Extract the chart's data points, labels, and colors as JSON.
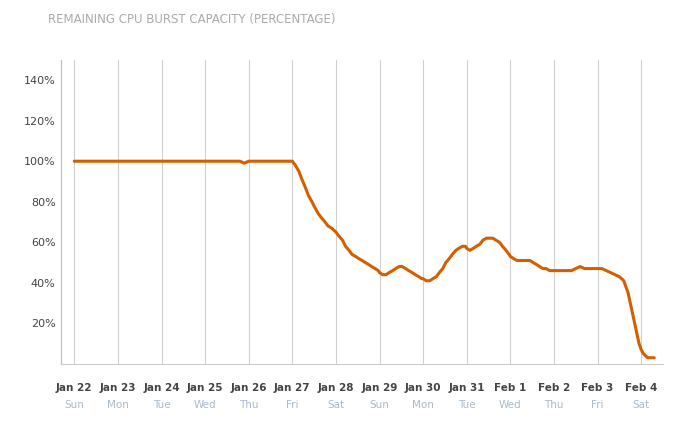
{
  "title": "REMAINING CPU BURST CAPACITY (PERCENTAGE)",
  "title_color": "#aaaaaa",
  "title_fontsize": 8.5,
  "line_color": "#d45f00",
  "line_width": 2.2,
  "background_color": "#ffffff",
  "grid_color": "#d0d0d0",
  "tick_label_color_date": "#444444",
  "tick_label_color_day": "#aabbcc",
  "ylim": [
    0,
    150
  ],
  "yticks": [
    20,
    40,
    60,
    80,
    100,
    120,
    140
  ],
  "x_labels": [
    [
      "Jan 22",
      "Sun"
    ],
    [
      "Jan 23",
      "Mon"
    ],
    [
      "Jan 24",
      "Tue"
    ],
    [
      "Jan 25",
      "Wed"
    ],
    [
      "Jan 26",
      "Thu"
    ],
    [
      "Jan 27",
      "Fri"
    ],
    [
      "Jan 28",
      "Sat"
    ],
    [
      "Jan 29",
      "Sun"
    ],
    [
      "Jan 30",
      "Mon"
    ],
    [
      "Jan 31",
      "Tue"
    ],
    [
      "Feb 1",
      "Wed"
    ],
    [
      "Feb 2",
      "Thu"
    ],
    [
      "Feb 3",
      "Fri"
    ],
    [
      "Feb 4",
      "Sat"
    ]
  ],
  "y_data": [
    [
      0.0,
      100
    ],
    [
      0.1,
      100
    ],
    [
      0.2,
      100
    ],
    [
      0.3,
      100
    ],
    [
      0.4,
      100
    ],
    [
      0.5,
      100
    ],
    [
      0.6,
      100
    ],
    [
      0.7,
      100
    ],
    [
      0.8,
      100
    ],
    [
      0.9,
      100
    ],
    [
      1.0,
      100
    ],
    [
      1.1,
      100
    ],
    [
      1.2,
      100
    ],
    [
      1.3,
      100
    ],
    [
      1.4,
      100
    ],
    [
      1.5,
      100
    ],
    [
      1.6,
      100
    ],
    [
      1.7,
      100
    ],
    [
      1.8,
      100
    ],
    [
      1.9,
      100
    ],
    [
      2.0,
      100
    ],
    [
      2.1,
      100
    ],
    [
      2.2,
      100
    ],
    [
      2.3,
      100
    ],
    [
      2.4,
      100
    ],
    [
      2.5,
      100
    ],
    [
      2.6,
      100
    ],
    [
      2.7,
      100
    ],
    [
      2.8,
      100
    ],
    [
      2.9,
      100
    ],
    [
      3.0,
      100
    ],
    [
      3.1,
      100
    ],
    [
      3.2,
      100
    ],
    [
      3.3,
      100
    ],
    [
      3.4,
      100
    ],
    [
      3.5,
      100
    ],
    [
      3.6,
      100
    ],
    [
      3.7,
      100
    ],
    [
      3.8,
      100
    ],
    [
      3.9,
      99
    ],
    [
      4.0,
      100
    ],
    [
      4.1,
      100
    ],
    [
      4.2,
      100
    ],
    [
      4.3,
      100
    ],
    [
      4.4,
      100
    ],
    [
      4.5,
      100
    ],
    [
      4.6,
      100
    ],
    [
      4.7,
      100
    ],
    [
      4.8,
      100
    ],
    [
      4.9,
      100
    ],
    [
      5.0,
      100
    ],
    [
      5.07,
      98
    ],
    [
      5.15,
      95
    ],
    [
      5.22,
      91
    ],
    [
      5.3,
      87
    ],
    [
      5.37,
      83
    ],
    [
      5.45,
      80
    ],
    [
      5.52,
      77
    ],
    [
      5.6,
      74
    ],
    [
      5.67,
      72
    ],
    [
      5.75,
      70
    ],
    [
      5.82,
      68
    ],
    [
      5.9,
      67
    ],
    [
      6.0,
      65
    ],
    [
      6.07,
      63
    ],
    [
      6.15,
      61
    ],
    [
      6.22,
      58
    ],
    [
      6.3,
      56
    ],
    [
      6.37,
      54
    ],
    [
      6.45,
      53
    ],
    [
      6.52,
      52
    ],
    [
      6.6,
      51
    ],
    [
      6.67,
      50
    ],
    [
      6.75,
      49
    ],
    [
      6.82,
      48
    ],
    [
      6.9,
      47
    ],
    [
      6.97,
      46
    ],
    [
      7.0,
      45
    ],
    [
      7.07,
      44
    ],
    [
      7.15,
      44
    ],
    [
      7.22,
      45
    ],
    [
      7.3,
      46
    ],
    [
      7.37,
      47
    ],
    [
      7.45,
      48
    ],
    [
      7.52,
      48
    ],
    [
      7.6,
      47
    ],
    [
      7.67,
      46
    ],
    [
      7.75,
      45
    ],
    [
      7.82,
      44
    ],
    [
      7.9,
      43
    ],
    [
      7.97,
      42
    ],
    [
      8.0,
      42
    ],
    [
      8.07,
      41
    ],
    [
      8.15,
      41
    ],
    [
      8.22,
      42
    ],
    [
      8.3,
      43
    ],
    [
      8.37,
      45
    ],
    [
      8.45,
      47
    ],
    [
      8.52,
      50
    ],
    [
      8.6,
      52
    ],
    [
      8.67,
      54
    ],
    [
      8.75,
      56
    ],
    [
      8.82,
      57
    ],
    [
      8.9,
      58
    ],
    [
      8.97,
      58
    ],
    [
      9.0,
      57
    ],
    [
      9.07,
      56
    ],
    [
      9.15,
      57
    ],
    [
      9.22,
      58
    ],
    [
      9.3,
      59
    ],
    [
      9.37,
      61
    ],
    [
      9.45,
      62
    ],
    [
      9.52,
      62
    ],
    [
      9.6,
      62
    ],
    [
      9.67,
      61
    ],
    [
      9.75,
      60
    ],
    [
      9.82,
      58
    ],
    [
      9.9,
      56
    ],
    [
      9.97,
      54
    ],
    [
      10.0,
      53
    ],
    [
      10.07,
      52
    ],
    [
      10.15,
      51
    ],
    [
      10.22,
      51
    ],
    [
      10.3,
      51
    ],
    [
      10.37,
      51
    ],
    [
      10.45,
      51
    ],
    [
      10.52,
      50
    ],
    [
      10.6,
      49
    ],
    [
      10.67,
      48
    ],
    [
      10.75,
      47
    ],
    [
      10.82,
      47
    ],
    [
      10.9,
      46
    ],
    [
      10.97,
      46
    ],
    [
      11.0,
      46
    ],
    [
      11.1,
      46
    ],
    [
      11.2,
      46
    ],
    [
      11.3,
      46
    ],
    [
      11.4,
      46
    ],
    [
      11.5,
      47
    ],
    [
      11.6,
      48
    ],
    [
      11.7,
      47
    ],
    [
      11.8,
      47
    ],
    [
      11.9,
      47
    ],
    [
      12.0,
      47
    ],
    [
      12.1,
      47
    ],
    [
      12.2,
      46
    ],
    [
      12.3,
      45
    ],
    [
      12.4,
      44
    ],
    [
      12.5,
      43
    ],
    [
      12.6,
      41
    ],
    [
      12.65,
      38
    ],
    [
      12.7,
      35
    ],
    [
      12.75,
      30
    ],
    [
      12.8,
      25
    ],
    [
      12.85,
      20
    ],
    [
      12.9,
      15
    ],
    [
      12.95,
      10
    ],
    [
      13.0,
      7
    ],
    [
      13.05,
      5
    ],
    [
      13.1,
      4
    ],
    [
      13.15,
      3
    ],
    [
      13.2,
      3
    ],
    [
      13.25,
      3
    ],
    [
      13.3,
      3
    ]
  ]
}
